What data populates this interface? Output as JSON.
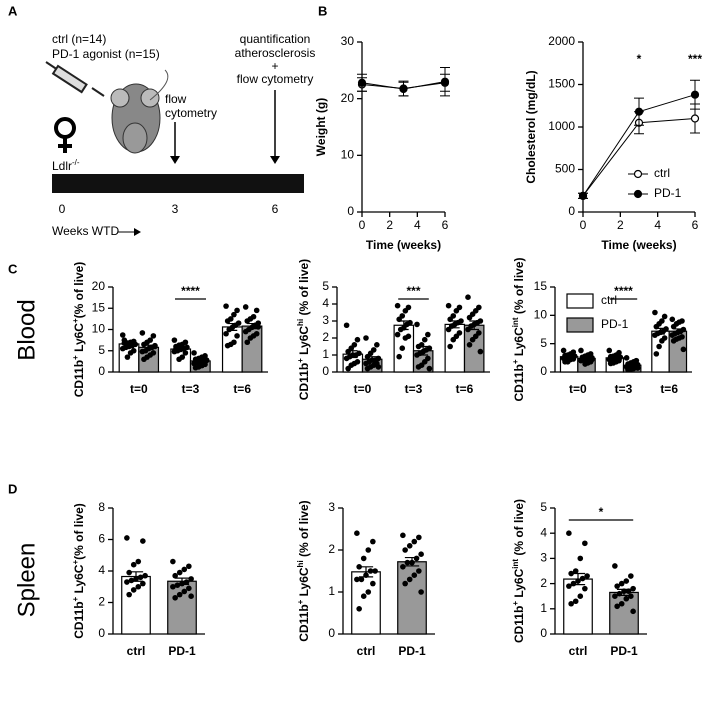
{
  "panels": [
    "A",
    "B",
    "C",
    "D"
  ],
  "rows": [
    "Blood",
    "Spleen"
  ],
  "diagram": {
    "groups": [
      "ctrl (n=14)",
      "PD-1 agonist (n=15)"
    ],
    "strain": [
      {
        "text": "Ldlr"
      },
      {
        "text": "-/-",
        "sup": true
      }
    ],
    "event1": [
      "flow",
      "cytometry"
    ],
    "event2": [
      "quantification",
      "atherosclerosis",
      "+",
      "flow cytometry"
    ],
    "timeline": [
      "0",
      "3",
      "6"
    ],
    "timeline_label": "Weeks WTD"
  },
  "chart_data": [
    {
      "type": "line",
      "ylabel": "Weight (g)",
      "xlabel": "Time (weeks)",
      "x": [
        0,
        3,
        6
      ],
      "xlim": [
        0,
        6
      ],
      "xticks": [
        0,
        2,
        4,
        6
      ],
      "ylim": [
        0,
        30
      ],
      "yticks": [
        0,
        10,
        20,
        30
      ],
      "series": [
        {
          "name": "ctrl",
          "color": "#ffffff",
          "values": [
            22.5,
            21.8,
            22.8
          ],
          "errors": [
            1.2,
            1.3,
            1.5
          ]
        },
        {
          "name": "PD-1",
          "color": "#000000",
          "values": [
            22.8,
            21.7,
            23.0
          ],
          "errors": [
            1.5,
            1.2,
            2.5
          ]
        }
      ],
      "legend": false
    },
    {
      "type": "line",
      "ylabel": "Cholesterol (mg/dL)",
      "xlabel": "Time (weeks)",
      "x": [
        0,
        3,
        6
      ],
      "xlim": [
        0,
        6
      ],
      "xticks": [
        0,
        2,
        4,
        6
      ],
      "ylim": [
        0,
        2000
      ],
      "yticks": [
        0,
        500,
        1000,
        1500,
        2000
      ],
      "series": [
        {
          "name": "ctrl",
          "color": "#ffffff",
          "values": [
            190,
            1050,
            1100
          ],
          "errors": [
            30,
            130,
            170
          ]
        },
        {
          "name": "PD-1",
          "color": "#000000",
          "values": [
            190,
            1180,
            1380
          ],
          "errors": [
            30,
            160,
            170
          ]
        }
      ],
      "annotations": [
        {
          "text": "*",
          "x": 3
        },
        {
          "text": "***",
          "x": 6
        }
      ],
      "legend": true,
      "legend_position": "lower right"
    },
    {
      "type": "bar",
      "ylabel": [
        {
          "text": "CD11b"
        },
        {
          "text": "+",
          "sup": true
        },
        {
          "text": " Ly6C"
        },
        {
          "text": "+",
          "sup": true
        },
        {
          "text": "(% of live)"
        }
      ],
      "categories": [
        "t=0",
        "t=3",
        "t=6"
      ],
      "ylim": [
        0,
        20
      ],
      "yticks": [
        0,
        5,
        10,
        15,
        20
      ],
      "series": [
        {
          "name": "ctrl",
          "color": "#ffffff",
          "values": [
            6.6,
            5.4,
            10.6
          ],
          "errors": [
            0.5,
            0.4,
            0.8
          ],
          "points": [
            [
              8.7,
              7.2,
              7,
              6.8,
              6.8,
              6.5,
              6.2,
              6,
              5.8,
              5.5,
              5,
              4.5,
              3.5,
              7.5
            ],
            [
              7.5,
              7,
              6.5,
              6.3,
              6,
              5.8,
              5.5,
              5.3,
              5,
              4.8,
              4.5,
              3.5,
              3,
              5.5
            ],
            [
              15.5,
              14.5,
              13.5,
              12.5,
              12,
              11.5,
              11,
              10.5,
              10,
              9,
              8.5,
              7,
              6.5,
              6.2
            ]
          ]
        },
        {
          "name": "PD-1",
          "color": "#999999",
          "values": [
            5.8,
            2.6,
            10.8
          ],
          "errors": [
            0.5,
            0.3,
            0.6
          ],
          "points": [
            [
              9.2,
              8.5,
              7.5,
              7,
              6.5,
              6,
              5.8,
              5.5,
              5,
              4.8,
              4.5,
              4,
              3.5,
              3,
              6.2
            ],
            [
              4.5,
              3.8,
              3.5,
              3.2,
              3,
              2.8,
              2.6,
              2.4,
              2.2,
              2,
              1.8,
              1.5,
              1.2,
              1,
              2.7
            ],
            [
              15.3,
              14.5,
              13,
              12.5,
              12,
              11.5,
              11,
              10.5,
              10,
              9.5,
              9,
              8.5,
              8,
              7,
              10.6
            ]
          ]
        }
      ],
      "annotations": [
        {
          "text": "****",
          "category": "t=3"
        }
      ],
      "legend": false
    },
    {
      "type": "bar",
      "ylabel": [
        {
          "text": "CD11b"
        },
        {
          "text": "+",
          "sup": true
        },
        {
          "text": " Ly6C"
        },
        {
          "text": "hi",
          "sup": true
        },
        {
          "text": " (% of live)"
        }
      ],
      "categories": [
        "t=0",
        "t=3",
        "t=6"
      ],
      "ylim": [
        0,
        5
      ],
      "yticks": [
        0,
        1,
        2,
        3,
        4,
        5
      ],
      "series": [
        {
          "name": "ctrl",
          "color": "#ffffff",
          "values": [
            1.05,
            2.75,
            2.8
          ],
          "errors": [
            0.2,
            0.25,
            0.2
          ],
          "points": [
            [
              2.75,
              1.9,
              1.6,
              1.4,
              1.2,
              1.1,
              1,
              1,
              0.9,
              0.8,
              0.6,
              0.5,
              0.4,
              0.2
            ],
            [
              3.9,
              3.8,
              3.6,
              3.3,
              3.1,
              2.9,
              2.8,
              2.6,
              2.5,
              2.2,
              2.1,
              2,
              1.4,
              0.9
            ],
            [
              3.9,
              3.8,
              3.6,
              3.3,
              3.1,
              3,
              2.9,
              2.8,
              2.7,
              2.5,
              2.3,
              2.1,
              1.9,
              1.5
            ]
          ]
        },
        {
          "name": "PD-1",
          "color": "#999999",
          "values": [
            0.75,
            1.25,
            2.75
          ],
          "errors": [
            0.15,
            0.25,
            0.25
          ],
          "points": [
            [
              2,
              1.6,
              1.3,
              1.1,
              0.9,
              0.8,
              0.7,
              0.7,
              0.6,
              0.5,
              0.5,
              0.4,
              0.3,
              0.2,
              0.3
            ],
            [
              2.8,
              2.2,
              1.9,
              1.6,
              1.5,
              1.4,
              1.3,
              1.2,
              1.1,
              1,
              0.8,
              0.6,
              0.4,
              0.3,
              0.2
            ],
            [
              4.4,
              3.8,
              3.6,
              3.4,
              3.2,
              3,
              2.9,
              2.8,
              2.7,
              2.5,
              2.3,
              2.1,
              1.9,
              1.6,
              1.2
            ]
          ]
        }
      ],
      "annotations": [
        {
          "text": "***",
          "category": "t=3"
        }
      ],
      "legend": false
    },
    {
      "type": "bar",
      "ylabel": [
        {
          "text": "CD11b"
        },
        {
          "text": "+",
          "sup": true
        },
        {
          "text": " Ly6C"
        },
        {
          "text": "int",
          "sup": true
        },
        {
          "text": " (% of live)"
        }
      ],
      "categories": [
        "t=0",
        "t=3",
        "t=6"
      ],
      "ylim": [
        0,
        15
      ],
      "yticks": [
        0,
        5,
        10,
        15
      ],
      "series": [
        {
          "name": "ctrl",
          "color": "#ffffff",
          "values": [
            2.7,
            2.5,
            7.2
          ],
          "errors": [
            0.15,
            0.2,
            0.5
          ],
          "points": [
            [
              3.8,
              3.5,
              3.2,
              3,
              2.9,
              2.8,
              2.7,
              2.6,
              2.5,
              2.4,
              2.3,
              2.2,
              1.8,
              1.8
            ],
            [
              3.8,
              3.4,
              3,
              2.8,
              2.7,
              2.6,
              2.5,
              2.4,
              2.3,
              2.2,
              2,
              1.8,
              1.6,
              1.5
            ],
            [
              10.5,
              9.8,
              9,
              8.5,
              8,
              7.6,
              7.2,
              7,
              6.8,
              6.5,
              6,
              5.5,
              4.5,
              3.2
            ]
          ]
        },
        {
          "name": "PD-1",
          "color": "#999999",
          "values": [
            2.4,
            1.2,
            7.2
          ],
          "errors": [
            0.2,
            0.15,
            0.4
          ],
          "points": [
            [
              3.8,
              3.2,
              3,
              2.8,
              2.6,
              2.5,
              2.4,
              2.3,
              2.2,
              2,
              1.8,
              1.6,
              1.4,
              2.5,
              2.2
            ],
            [
              2.5,
              2,
              1.8,
              1.6,
              1.4,
              1.3,
              1.2,
              1.1,
              1,
              0.9,
              0.8,
              0.6,
              0.5,
              0.4,
              0.7
            ],
            [
              9.3,
              9,
              8.8,
              8.5,
              8,
              7.5,
              7.2,
              7,
              6.8,
              6.5,
              6.2,
              6,
              5.8,
              5.5,
              4
            ]
          ]
        }
      ],
      "annotations": [
        {
          "text": "****",
          "category": "t=3"
        }
      ],
      "legend": true,
      "legend_position": "upper right"
    },
    {
      "type": "bar",
      "ylabel": [
        {
          "text": "CD11b"
        },
        {
          "text": "+",
          "sup": true
        },
        {
          "text": " Ly6C"
        },
        {
          "text": "+",
          "sup": true
        },
        {
          "text": "(% of live)"
        }
      ],
      "categories": [
        "ctrl",
        "PD-1"
      ],
      "ylim": [
        0,
        8
      ],
      "yticks": [
        0,
        2,
        4,
        6,
        8
      ],
      "colors": [
        "#ffffff",
        "#999999"
      ],
      "values": [
        3.65,
        3.35
      ],
      "errors": [
        0.3,
        0.2
      ],
      "points": [
        [
          6.1,
          5.9,
          4.6,
          4.4,
          3.9,
          3.7,
          3.6,
          3.5,
          3.4,
          3.3,
          3.2,
          3,
          2.8,
          2.5
        ],
        [
          4.6,
          4.3,
          4.1,
          3.9,
          3.7,
          3.5,
          3.3,
          3.2,
          3.1,
          3,
          2.9,
          2.7,
          2.5,
          2.3,
          2.4
        ]
      ]
    },
    {
      "type": "bar",
      "ylabel": [
        {
          "text": "CD11b"
        },
        {
          "text": "+",
          "sup": true
        },
        {
          "text": " Ly6C"
        },
        {
          "text": "hi",
          "sup": true
        },
        {
          "text": " (% of live)"
        }
      ],
      "categories": [
        "ctrl",
        "PD-1"
      ],
      "ylim": [
        0,
        3
      ],
      "yticks": [
        0,
        1,
        2,
        3
      ],
      "colors": [
        "#ffffff",
        "#999999"
      ],
      "values": [
        1.48,
        1.72
      ],
      "errors": [
        0.12,
        0.1
      ],
      "points": [
        [
          2.4,
          2.2,
          2,
          1.8,
          1.6,
          1.5,
          1.5,
          1.4,
          1.3,
          1.3,
          1.2,
          1,
          0.9,
          0.6
        ],
        [
          2.35,
          2.3,
          2.2,
          2.1,
          2,
          1.9,
          1.8,
          1.7,
          1.7,
          1.6,
          1.5,
          1.4,
          1.3,
          1.2,
          1
        ]
      ]
    },
    {
      "type": "bar",
      "ylabel": [
        {
          "text": "CD11b"
        },
        {
          "text": "+",
          "sup": true
        },
        {
          "text": " Ly6C"
        },
        {
          "text": "int",
          "sup": true
        },
        {
          "text": " (% of live)"
        }
      ],
      "categories": [
        "ctrl",
        "PD-1"
      ],
      "ylim": [
        0,
        5
      ],
      "yticks": [
        0,
        1,
        2,
        3,
        4,
        5
      ],
      "colors": [
        "#ffffff",
        "#999999"
      ],
      "values": [
        2.18,
        1.65
      ],
      "errors": [
        0.22,
        0.12
      ],
      "points": [
        [
          4,
          3.6,
          3,
          2.5,
          2.4,
          2.3,
          2.2,
          2.1,
          2,
          1.9,
          1.8,
          1.5,
          1.3,
          1.2
        ],
        [
          2.7,
          2.3,
          2.1,
          2,
          1.9,
          1.8,
          1.7,
          1.7,
          1.6,
          1.5,
          1.5,
          1.4,
          1.2,
          1.1,
          0.9
        ]
      ],
      "annotations": [
        {
          "text": "*"
        }
      ]
    }
  ]
}
